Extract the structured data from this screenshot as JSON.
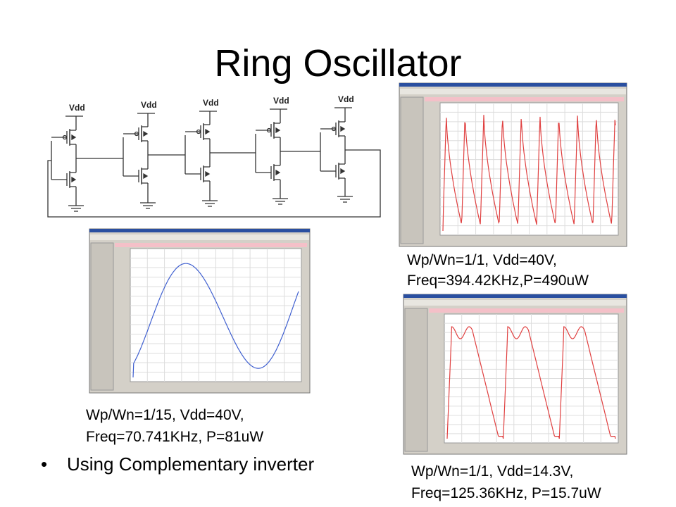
{
  "title": "Ring Oscillator",
  "schematic": {
    "labels": [
      "Vdd",
      "Vdd",
      "Vdd",
      "Vdd",
      "Vdd"
    ]
  },
  "captions": [
    [
      "Wp/Wn=1/1, Vdd=40V,",
      "Freq=394.42KHz,P=490uW"
    ],
    [
      "Wp/Wn=1/15, Vdd=40V,",
      "Freq=70.741KHz, P=81uW"
    ],
    [
      "Wp/Wn=1/1, Vdd=14.3V,",
      "Freq=125.36KHz, P=15.7uW"
    ]
  ],
  "bullets": [
    "Using Complementary inverter"
  ]
}
